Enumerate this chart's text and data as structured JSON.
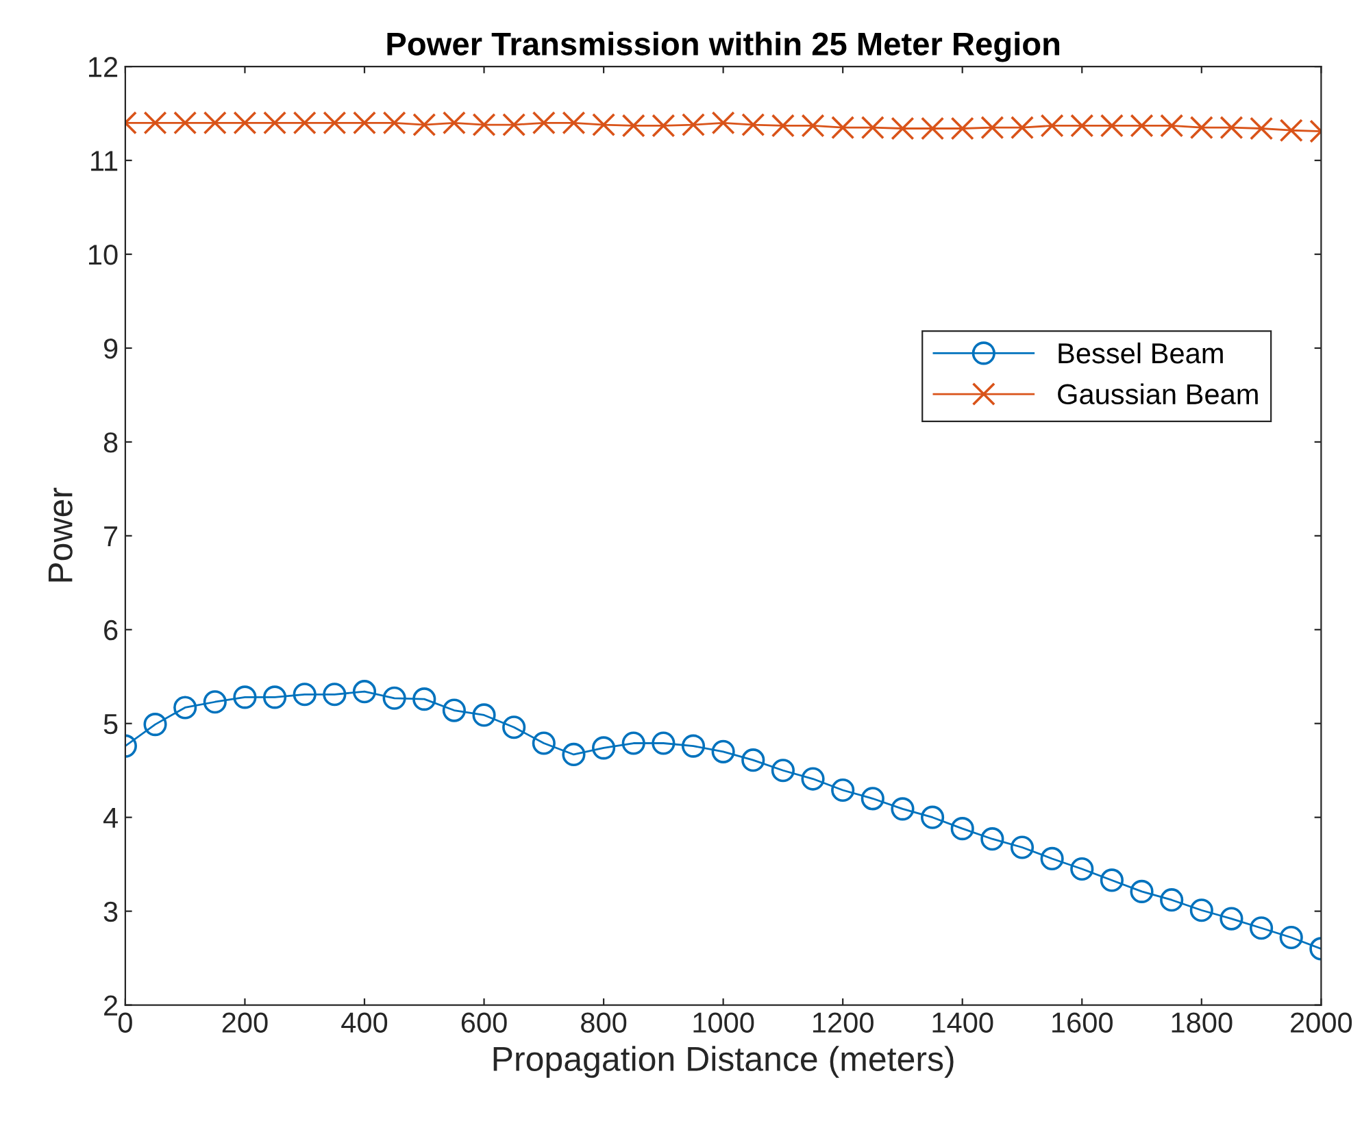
{
  "chart_data": {
    "type": "line",
    "title": "Power Transmission within 25 Meter Region",
    "xlabel": "Propagation Distance (meters)",
    "ylabel": "Power",
    "x": [
      0,
      50,
      100,
      150,
      200,
      250,
      300,
      350,
      400,
      450,
      500,
      550,
      600,
      650,
      700,
      750,
      800,
      850,
      900,
      950,
      1000,
      1050,
      1100,
      1150,
      1200,
      1250,
      1300,
      1350,
      1400,
      1450,
      1500,
      1550,
      1600,
      1650,
      1700,
      1750,
      1800,
      1850,
      1900,
      1950,
      2000
    ],
    "series": [
      {
        "name": "Bessel Beam",
        "color": "#0072bd",
        "marker": "circle",
        "values": [
          4.76,
          4.99,
          5.17,
          5.23,
          5.28,
          5.28,
          5.31,
          5.31,
          5.34,
          5.27,
          5.26,
          5.14,
          5.09,
          4.96,
          4.79,
          4.67,
          4.74,
          4.79,
          4.79,
          4.76,
          4.7,
          4.61,
          4.5,
          4.41,
          4.29,
          4.2,
          4.09,
          4.0,
          3.88,
          3.77,
          3.68,
          3.56,
          3.45,
          3.33,
          3.21,
          3.12,
          3.01,
          2.92,
          2.82,
          2.72,
          2.6
        ]
      },
      {
        "name": "Gaussian Beam",
        "color": "#d95319",
        "marker": "cross",
        "values": [
          11.4,
          11.4,
          11.4,
          11.4,
          11.4,
          11.4,
          11.4,
          11.4,
          11.4,
          11.4,
          11.38,
          11.4,
          11.38,
          11.38,
          11.4,
          11.4,
          11.38,
          11.37,
          11.37,
          11.38,
          11.4,
          11.38,
          11.37,
          11.37,
          11.35,
          11.35,
          11.34,
          11.34,
          11.34,
          11.35,
          11.35,
          11.37,
          11.37,
          11.37,
          11.37,
          11.37,
          11.35,
          11.35,
          11.34,
          11.32,
          11.31
        ]
      }
    ],
    "xlim": [
      0,
      2000
    ],
    "xticks": [
      0,
      200,
      400,
      600,
      800,
      1000,
      1200,
      1400,
      1600,
      1800,
      2000
    ],
    "ylim": [
      2,
      12
    ],
    "yticks": [
      2,
      3,
      4,
      5,
      6,
      7,
      8,
      9,
      10,
      11,
      12
    ],
    "grid": false,
    "legend": "right",
    "line_style": "solid"
  }
}
